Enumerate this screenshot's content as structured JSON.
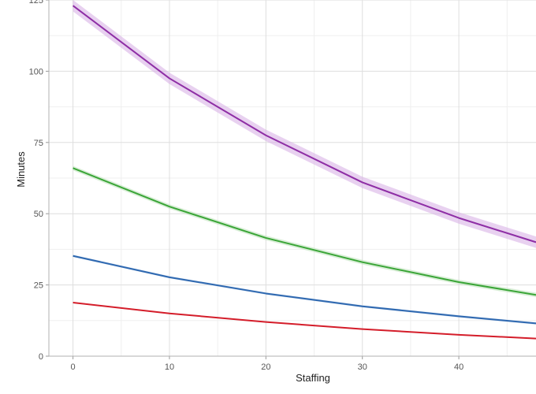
{
  "chart_data": {
    "type": "line",
    "title": "",
    "xlabel": "Staffing",
    "ylabel": "Minutes",
    "xlim": [
      -2.5,
      48
    ],
    "ylim": [
      0,
      125
    ],
    "xticks": [
      0,
      10,
      20,
      30,
      40
    ],
    "yticks": [
      0,
      25,
      50,
      75,
      100,
      125
    ],
    "grid": true,
    "legend": "none",
    "x": [
      0,
      10,
      20,
      30,
      40,
      48
    ],
    "series": [
      {
        "color": "#8e2ea5",
        "band_color": "#d9b3e6",
        "band": 2.0,
        "values": [
          123,
          97.5,
          77.5,
          61,
          48.5,
          40
        ]
      },
      {
        "color": "#3aa537",
        "band_color": "#bfe3bd",
        "band": 0.8,
        "values": [
          66,
          52.5,
          41.5,
          33,
          26,
          21.5
        ]
      },
      {
        "color": "#2e68b0",
        "band_color": "#b7cde8",
        "band": 0.4,
        "values": [
          35.2,
          27.7,
          22,
          17.5,
          14,
          11.5
        ]
      },
      {
        "color": "#d41d2a",
        "band_color": "#f0b7bb",
        "band": 0.2,
        "values": [
          18.8,
          15,
          12,
          9.5,
          7.5,
          6.2
        ]
      }
    ]
  }
}
